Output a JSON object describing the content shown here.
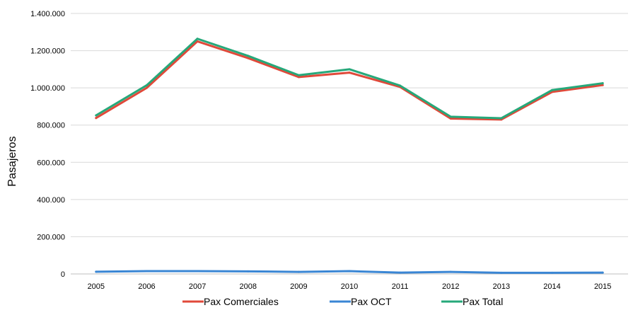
{
  "chart_data": {
    "type": "line",
    "title": "",
    "xlabel": "",
    "ylabel": "Pasajeros",
    "x": [
      "2005",
      "2006",
      "2007",
      "2008",
      "2009",
      "2010",
      "2011",
      "2012",
      "2013",
      "2014",
      "2015"
    ],
    "ylim": [
      0,
      1400000
    ],
    "yticks": [
      0,
      200000,
      400000,
      600000,
      800000,
      1000000,
      1200000,
      1400000
    ],
    "ytick_labels": [
      "0",
      "200.000",
      "400.000",
      "600.000",
      "800.000",
      "1.000.000",
      "1.200.000",
      "1.400.000"
    ],
    "grid": "horizontal",
    "legend_position": "bottom",
    "series": [
      {
        "name": "Pax Comerciales",
        "color": "#e0493a",
        "values": [
          838000,
          1000000,
          1250000,
          1160000,
          1058000,
          1082000,
          1005000,
          835000,
          830000,
          978000,
          1015000
        ]
      },
      {
        "name": "Pax OCT",
        "color": "#3a86d4",
        "values": [
          12000,
          15000,
          15000,
          14000,
          11000,
          15000,
          7000,
          11000,
          6000,
          6000,
          7000
        ]
      },
      {
        "name": "Pax Total",
        "color": "#26a87a",
        "values": [
          852000,
          1014000,
          1264000,
          1172000,
          1068000,
          1100000,
          1012000,
          845000,
          837000,
          988000,
          1025000
        ]
      }
    ]
  }
}
